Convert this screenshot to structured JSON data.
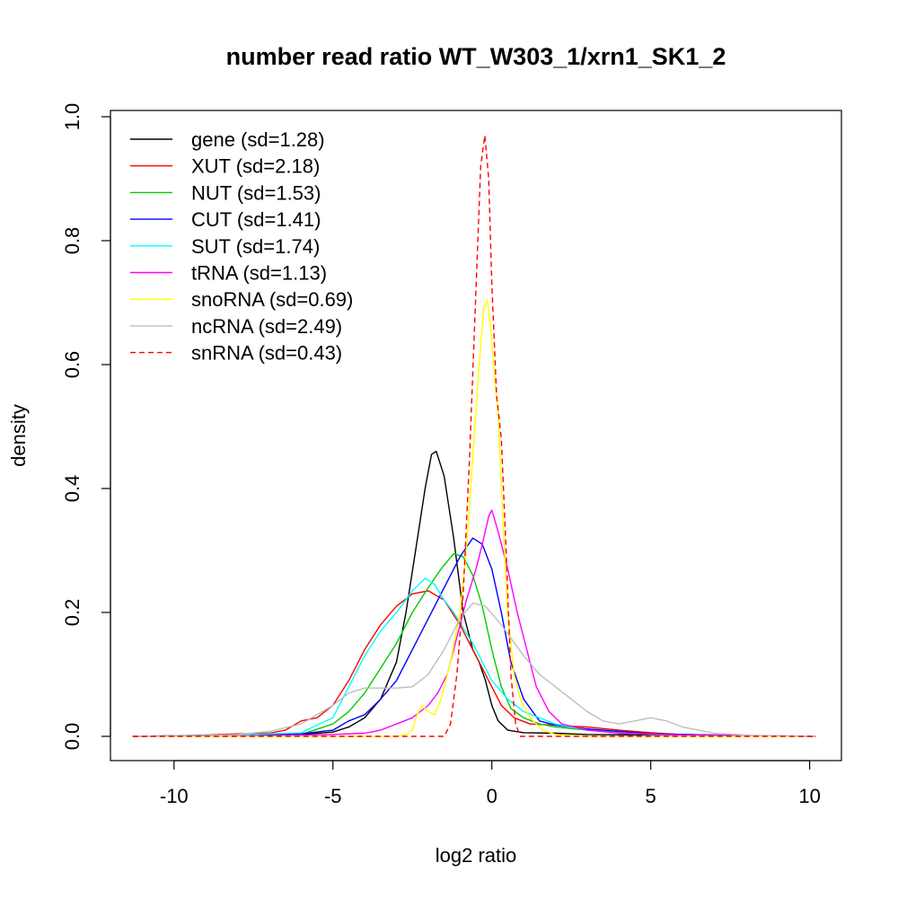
{
  "chart_data": {
    "type": "line",
    "title": "number read ratio WT_W303_1/xrn1_SK1_2",
    "xlabel": "log2 ratio",
    "ylabel": "density",
    "xlim": [
      -12,
      11
    ],
    "ylim": [
      -0.04,
      1.0
    ],
    "x_ticks": [
      -10,
      -5,
      0,
      5,
      10
    ],
    "x_tick_labels": [
      "-10",
      "-5",
      "0",
      "5",
      "10"
    ],
    "y_ticks": [
      0.0,
      0.2,
      0.4,
      0.6,
      0.8,
      1.0
    ],
    "y_tick_labels": [
      "0.0",
      "0.2",
      "0.4",
      "0.6",
      "0.8",
      "1.0"
    ],
    "grid": false,
    "legend_position": "top-left",
    "series": [
      {
        "name": "gene (sd=1.28)",
        "color": "#000000",
        "dash": "solid",
        "points": [
          [
            -11.3,
            0
          ],
          [
            -8,
            0.002
          ],
          [
            -6,
            0.003
          ],
          [
            -5,
            0.007
          ],
          [
            -4.5,
            0.015
          ],
          [
            -4,
            0.03
          ],
          [
            -3.5,
            0.06
          ],
          [
            -3,
            0.12
          ],
          [
            -2.7,
            0.2
          ],
          [
            -2.4,
            0.3
          ],
          [
            -2.1,
            0.4
          ],
          [
            -1.9,
            0.455
          ],
          [
            -1.75,
            0.46
          ],
          [
            -1.5,
            0.42
          ],
          [
            -1.2,
            0.32
          ],
          [
            -0.9,
            0.2
          ],
          [
            -0.6,
            0.14
          ],
          [
            -0.4,
            0.12
          ],
          [
            -0.2,
            0.09
          ],
          [
            0,
            0.05
          ],
          [
            0.2,
            0.025
          ],
          [
            0.5,
            0.01
          ],
          [
            1,
            0.006
          ],
          [
            2,
            0.005
          ],
          [
            3,
            0.003
          ],
          [
            5,
            0.002
          ],
          [
            8,
            0.001
          ],
          [
            10.2,
            0
          ]
        ]
      },
      {
        "name": "XUT (sd=2.18)",
        "color": "#ff0000",
        "dash": "solid",
        "points": [
          [
            -11.3,
            0
          ],
          [
            -10,
            0.001
          ],
          [
            -9,
            0.002
          ],
          [
            -8,
            0.004
          ],
          [
            -7,
            0.005
          ],
          [
            -6.5,
            0.01
          ],
          [
            -6,
            0.025
          ],
          [
            -5.5,
            0.03
          ],
          [
            -5,
            0.05
          ],
          [
            -4.5,
            0.09
          ],
          [
            -4,
            0.14
          ],
          [
            -3.5,
            0.18
          ],
          [
            -3,
            0.21
          ],
          [
            -2.5,
            0.23
          ],
          [
            -2,
            0.235
          ],
          [
            -1.5,
            0.22
          ],
          [
            -1,
            0.18
          ],
          [
            -0.5,
            0.13
          ],
          [
            0,
            0.08
          ],
          [
            0.3,
            0.05
          ],
          [
            0.7,
            0.03
          ],
          [
            1.2,
            0.02
          ],
          [
            2,
            0.018
          ],
          [
            3,
            0.015
          ],
          [
            4,
            0.01
          ],
          [
            5,
            0.006
          ],
          [
            6,
            0.003
          ],
          [
            7,
            0.002
          ],
          [
            8,
            0.001
          ],
          [
            10.2,
            0
          ]
        ]
      },
      {
        "name": "NUT (sd=1.53)",
        "color": "#00cc00",
        "dash": "solid",
        "points": [
          [
            -11.3,
            0
          ],
          [
            -8,
            0.001
          ],
          [
            -6,
            0.003
          ],
          [
            -5,
            0.02
          ],
          [
            -4.5,
            0.04
          ],
          [
            -4,
            0.07
          ],
          [
            -3.5,
            0.11
          ],
          [
            -3,
            0.15
          ],
          [
            -2.5,
            0.2
          ],
          [
            -2,
            0.24
          ],
          [
            -1.6,
            0.27
          ],
          [
            -1.2,
            0.295
          ],
          [
            -0.9,
            0.29
          ],
          [
            -0.6,
            0.26
          ],
          [
            -0.3,
            0.21
          ],
          [
            0,
            0.14
          ],
          [
            0.3,
            0.08
          ],
          [
            0.6,
            0.045
          ],
          [
            1,
            0.03
          ],
          [
            1.5,
            0.02
          ],
          [
            2,
            0.015
          ],
          [
            3,
            0.01
          ],
          [
            5,
            0.004
          ],
          [
            7,
            0.002
          ],
          [
            10.2,
            0
          ]
        ]
      },
      {
        "name": "CUT (sd=1.41)",
        "color": "#0000ff",
        "dash": "solid",
        "points": [
          [
            -11.3,
            0
          ],
          [
            -8,
            0.001
          ],
          [
            -6,
            0.004
          ],
          [
            -5,
            0.01
          ],
          [
            -4.5,
            0.025
          ],
          [
            -4,
            0.035
          ],
          [
            -3.5,
            0.06
          ],
          [
            -3,
            0.09
          ],
          [
            -2.5,
            0.14
          ],
          [
            -2,
            0.19
          ],
          [
            -1.5,
            0.24
          ],
          [
            -1,
            0.29
          ],
          [
            -0.6,
            0.32
          ],
          [
            -0.3,
            0.31
          ],
          [
            0,
            0.27
          ],
          [
            0.3,
            0.2
          ],
          [
            0.6,
            0.12
          ],
          [
            1,
            0.06
          ],
          [
            1.5,
            0.025
          ],
          [
            2,
            0.018
          ],
          [
            3,
            0.012
          ],
          [
            4,
            0.008
          ],
          [
            5,
            0.004
          ],
          [
            7,
            0.002
          ],
          [
            10.2,
            0
          ]
        ]
      },
      {
        "name": "SUT (sd=1.74)",
        "color": "#00ffff",
        "dash": "solid",
        "points": [
          [
            -11.3,
            0
          ],
          [
            -8,
            0.002
          ],
          [
            -6,
            0.006
          ],
          [
            -5,
            0.03
          ],
          [
            -4.5,
            0.08
          ],
          [
            -4,
            0.13
          ],
          [
            -3.5,
            0.17
          ],
          [
            -3,
            0.2
          ],
          [
            -2.5,
            0.235
          ],
          [
            -2.1,
            0.255
          ],
          [
            -1.8,
            0.245
          ],
          [
            -1.5,
            0.22
          ],
          [
            -1.2,
            0.2
          ],
          [
            -0.9,
            0.175
          ],
          [
            -0.6,
            0.15
          ],
          [
            -0.3,
            0.12
          ],
          [
            0,
            0.09
          ],
          [
            0.5,
            0.06
          ],
          [
            1,
            0.04
          ],
          [
            1.5,
            0.03
          ],
          [
            2,
            0.02
          ],
          [
            3,
            0.01
          ],
          [
            4,
            0.006
          ],
          [
            5,
            0.003
          ],
          [
            7,
            0.001
          ],
          [
            10.2,
            0
          ]
        ]
      },
      {
        "name": "tRNA (sd=1.13)",
        "color": "#ff00ff",
        "dash": "solid",
        "points": [
          [
            -11.3,
            0
          ],
          [
            -7,
            0.001
          ],
          [
            -5,
            0.003
          ],
          [
            -4,
            0.005
          ],
          [
            -3.5,
            0.01
          ],
          [
            -3,
            0.02
          ],
          [
            -2.5,
            0.03
          ],
          [
            -2,
            0.05
          ],
          [
            -1.7,
            0.07
          ],
          [
            -1.4,
            0.1
          ],
          [
            -1.1,
            0.16
          ],
          [
            -0.8,
            0.22
          ],
          [
            -0.5,
            0.27
          ],
          [
            -0.3,
            0.31
          ],
          [
            -0.1,
            0.355
          ],
          [
            0,
            0.365
          ],
          [
            0.2,
            0.33
          ],
          [
            0.5,
            0.27
          ],
          [
            0.8,
            0.2
          ],
          [
            1.1,
            0.14
          ],
          [
            1.4,
            0.08
          ],
          [
            1.8,
            0.04
          ],
          [
            2.2,
            0.02
          ],
          [
            3,
            0.01
          ],
          [
            4,
            0.005
          ],
          [
            6,
            0.002
          ],
          [
            10.2,
            0
          ]
        ]
      },
      {
        "name": "snoRNA (sd=0.69)",
        "color": "#ffff00",
        "dash": "solid",
        "points": [
          [
            -11.3,
            0
          ],
          [
            -3,
            0
          ],
          [
            -2.7,
            0.003
          ],
          [
            -2.5,
            0.01
          ],
          [
            -2.35,
            0.035
          ],
          [
            -2.2,
            0.05
          ],
          [
            -2,
            0.04
          ],
          [
            -1.8,
            0.035
          ],
          [
            -1.6,
            0.06
          ],
          [
            -1.3,
            0.12
          ],
          [
            -1,
            0.2
          ],
          [
            -0.8,
            0.3
          ],
          [
            -0.6,
            0.45
          ],
          [
            -0.4,
            0.6
          ],
          [
            -0.25,
            0.69
          ],
          [
            -0.15,
            0.705
          ],
          [
            -0.05,
            0.67
          ],
          [
            0.05,
            0.6
          ],
          [
            0.2,
            0.52
          ],
          [
            0.35,
            0.35
          ],
          [
            0.5,
            0.2
          ],
          [
            0.7,
            0.1
          ],
          [
            0.9,
            0.06
          ],
          [
            1.2,
            0.03
          ],
          [
            1.6,
            0.01
          ],
          [
            2,
            0.003
          ],
          [
            3,
            0
          ],
          [
            10.2,
            0
          ]
        ]
      },
      {
        "name": "ncRNA (sd=2.49)",
        "color": "#bebebe",
        "dash": "solid",
        "points": [
          [
            -11.3,
            0
          ],
          [
            -9,
            0.001
          ],
          [
            -8,
            0.003
          ],
          [
            -7,
            0.008
          ],
          [
            -6,
            0.02
          ],
          [
            -5,
            0.05
          ],
          [
            -4.5,
            0.07
          ],
          [
            -4,
            0.078
          ],
          [
            -3.5,
            0.078
          ],
          [
            -3,
            0.078
          ],
          [
            -2.5,
            0.08
          ],
          [
            -2,
            0.1
          ],
          [
            -1.5,
            0.14
          ],
          [
            -1,
            0.19
          ],
          [
            -0.6,
            0.215
          ],
          [
            -0.2,
            0.21
          ],
          [
            0.3,
            0.18
          ],
          [
            1,
            0.13
          ],
          [
            1.5,
            0.1
          ],
          [
            2,
            0.08
          ],
          [
            2.5,
            0.06
          ],
          [
            3,
            0.04
          ],
          [
            3.5,
            0.025
          ],
          [
            4,
            0.02
          ],
          [
            4.5,
            0.025
          ],
          [
            5,
            0.03
          ],
          [
            5.5,
            0.025
          ],
          [
            6,
            0.015
          ],
          [
            7,
            0.005
          ],
          [
            8,
            0.002
          ],
          [
            10.2,
            0
          ]
        ]
      },
      {
        "name": "snRNA (sd=0.43)",
        "color": "#ff0000",
        "dash": "dashed",
        "points": [
          [
            -11.3,
            0
          ],
          [
            -1.5,
            0
          ],
          [
            -1.3,
            0.02
          ],
          [
            -1.1,
            0.1
          ],
          [
            -0.9,
            0.23
          ],
          [
            -0.7,
            0.45
          ],
          [
            -0.5,
            0.72
          ],
          [
            -0.35,
            0.92
          ],
          [
            -0.22,
            0.97
          ],
          [
            -0.1,
            0.9
          ],
          [
            0,
            0.73
          ],
          [
            0.15,
            0.55
          ],
          [
            0.3,
            0.48
          ],
          [
            0.45,
            0.3
          ],
          [
            0.6,
            0.1
          ],
          [
            0.75,
            0.02
          ],
          [
            0.9,
            0
          ],
          [
            10.2,
            0
          ]
        ]
      }
    ]
  }
}
